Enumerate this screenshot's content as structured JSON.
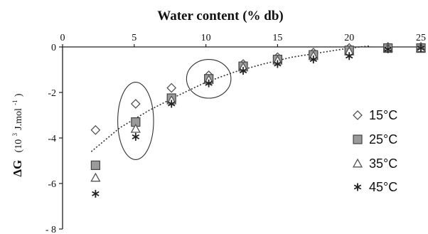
{
  "chart_data": {
    "type": "scatter",
    "title": "",
    "xlabel": "Water content (% db)",
    "ylabel_main": "ΔG",
    "ylabel_unit": "(10",
    "ylabel_sup": "3",
    "ylabel_unit2": " J.mol",
    "ylabel_sup2": "-1",
    "ylabel_close": ")",
    "xlim": [
      0,
      25
    ],
    "ylim": [
      -8,
      0
    ],
    "x_axis_position": "top",
    "x_ticks": [
      0,
      5,
      10,
      15,
      20,
      25
    ],
    "y_ticks": [
      0,
      -2,
      -4,
      -6,
      -8
    ],
    "y_tick_labels": [
      "0",
      "-2",
      "-4",
      "-6",
      "- 8"
    ],
    "grid": false,
    "legend_position": "right",
    "series": [
      {
        "name": "15°C",
        "marker": "diamond-open",
        "color": "#555555",
        "x": [
          2.3,
          5.1,
          7.6,
          10.2,
          12.6,
          15.0,
          17.5,
          20.0,
          22.7,
          25.0
        ],
        "y": [
          -3.65,
          -2.5,
          -1.8,
          -1.25,
          -0.75,
          -0.45,
          -0.25,
          -0.05,
          0.0,
          0.0
        ]
      },
      {
        "name": "25°C",
        "marker": "square-filled",
        "color": "#9a9a9a",
        "x": [
          2.3,
          5.1,
          7.6,
          10.2,
          12.6,
          15.0,
          17.5,
          20.0,
          22.7,
          25.0
        ],
        "y": [
          -5.2,
          -3.3,
          -2.25,
          -1.4,
          -0.85,
          -0.55,
          -0.35,
          -0.15,
          -0.05,
          -0.05
        ]
      },
      {
        "name": "35°C",
        "marker": "triangle-open",
        "color": "#555555",
        "x": [
          2.3,
          5.1,
          7.6,
          10.2,
          12.6,
          15.0,
          17.5,
          20.0,
          22.7,
          25.0
        ],
        "y": [
          -5.75,
          -3.6,
          -2.35,
          -1.45,
          -0.9,
          -0.6,
          -0.4,
          -0.2,
          -0.05,
          -0.05
        ]
      },
      {
        "name": "45°C",
        "marker": "asterisk",
        "color": "#222222",
        "x": [
          2.3,
          5.1,
          7.6,
          10.2,
          12.6,
          15.0,
          17.5,
          20.0,
          22.7,
          25.0
        ],
        "y": [
          -6.45,
          -3.95,
          -2.5,
          -1.6,
          -1.05,
          -0.75,
          -0.55,
          -0.4,
          -0.1,
          -0.05
        ]
      }
    ],
    "trend_line": {
      "style": "dotted",
      "x": [
        2.0,
        4.0,
        6.0,
        8.0,
        10.0,
        12.0,
        14.0,
        16.0,
        18.0,
        20.0,
        21.5
      ],
      "y": [
        -4.6,
        -3.55,
        -2.8,
        -2.15,
        -1.55,
        -1.1,
        -0.75,
        -0.45,
        -0.25,
        -0.05,
        0.05
      ]
    },
    "ellipses": [
      {
        "cx": 5.1,
        "cy": -3.25,
        "rx": 1.25,
        "ry": 1.7
      },
      {
        "cx": 10.2,
        "cy": -1.4,
        "rx": 1.55,
        "ry": 0.85
      }
    ]
  }
}
